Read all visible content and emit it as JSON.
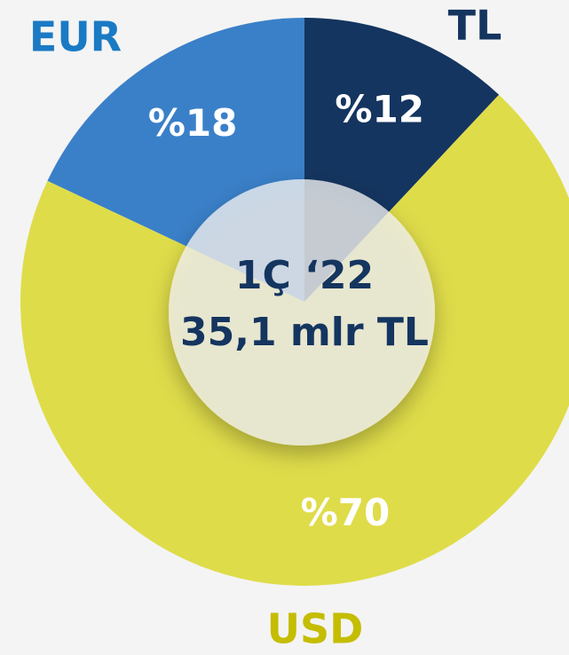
{
  "chart_data": {
    "type": "pie",
    "categories": [
      "TL",
      "USD",
      "EUR"
    ],
    "values": [
      12,
      70,
      18
    ],
    "value_labels": [
      "%12",
      "%70",
      "%18"
    ],
    "colors": [
      "#14355f",
      "#dfdc4a",
      "#3a80c8"
    ],
    "label_colors": [
      "#14355f",
      "#c4bd00",
      "#1a7ac4"
    ],
    "annotations": [
      "1Ç ‘22",
      "35,1 mlr TL"
    ]
  }
}
